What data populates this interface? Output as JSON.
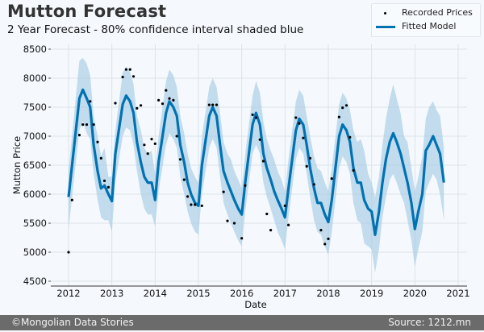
{
  "header": {
    "title": "Mutton Forecast",
    "subtitle": "2 Year Forecast - 80% confidence interval shaded blue"
  },
  "legend": {
    "items": [
      {
        "label": "Recorded Prices",
        "marker": "dot"
      },
      {
        "label": "Fitted Model",
        "marker": "line"
      }
    ]
  },
  "footer": {
    "left": "©Mongolian Data Stories",
    "right": "Source: 1212.mn"
  },
  "colors": {
    "model_line": "#0072b2",
    "interval": "#a6cce6",
    "points": "#000000",
    "grid": "#dde3e8",
    "footer_bg": "#6b6b6b"
  },
  "chart_data": {
    "type": "line",
    "title": "Mutton Forecast",
    "subtitle": "2 Year Forecast - 80% confidence interval shaded blue",
    "xlabel": "Date",
    "ylabel": "Mutton Price",
    "xlim": [
      2011.6,
      2021.1
    ],
    "ylim": [
      4450,
      8560
    ],
    "xticks": [
      2012,
      2013,
      2014,
      2015,
      2016,
      2017,
      2018,
      2019,
      2020,
      2021
    ],
    "yticks": [
      4500,
      5000,
      5500,
      6000,
      6500,
      7000,
      7500,
      8000,
      8500
    ],
    "grid": true,
    "legend_position": "top-right",
    "series": [
      {
        "name": "Fitted Model",
        "x": [
          2012.0,
          2012.25,
          2012.33,
          2012.42,
          2012.5,
          2012.58,
          2012.67,
          2012.75,
          2012.83,
          2012.92,
          2013.0,
          2013.08,
          2013.25,
          2013.33,
          2013.42,
          2013.5,
          2013.58,
          2013.67,
          2013.75,
          2013.83,
          2013.92,
          2014.0,
          2014.08,
          2014.25,
          2014.33,
          2014.42,
          2014.5,
          2014.58,
          2014.67,
          2014.75,
          2014.83,
          2014.92,
          2015.0,
          2015.08,
          2015.25,
          2015.33,
          2015.42,
          2015.5,
          2015.58,
          2015.67,
          2015.75,
          2015.83,
          2015.92,
          2016.0,
          2016.08,
          2016.25,
          2016.33,
          2016.42,
          2016.5,
          2016.58,
          2016.67,
          2016.75,
          2016.83,
          2016.92,
          2017.0,
          2017.08,
          2017.25,
          2017.33,
          2017.42,
          2017.5,
          2017.58,
          2017.67,
          2017.75,
          2017.83,
          2017.92,
          2018.0,
          2018.08,
          2018.25,
          2018.33,
          2018.42,
          2018.5,
          2018.58,
          2018.67,
          2018.75,
          2018.83,
          2018.92,
          2019.0,
          2019.08,
          2019.17,
          2019.25,
          2019.33,
          2019.42,
          2019.5,
          2019.58,
          2019.67,
          2019.75,
          2019.83,
          2019.92,
          2020.0,
          2020.08,
          2020.17,
          2020.25,
          2020.33,
          2020.42,
          2020.5,
          2020.58,
          2020.67
        ],
        "values": [
          5950,
          7650,
          7800,
          7650,
          7500,
          6850,
          6400,
          6100,
          6150,
          6000,
          5880,
          6700,
          7550,
          7700,
          7600,
          7400,
          6900,
          6550,
          6300,
          6200,
          6200,
          5900,
          6550,
          7400,
          7600,
          7500,
          7350,
          6850,
          6550,
          6200,
          6000,
          5850,
          5800,
          6500,
          7350,
          7500,
          7350,
          6850,
          6400,
          6200,
          6050,
          5900,
          5750,
          5650,
          6200,
          7200,
          7400,
          7200,
          6700,
          6450,
          6250,
          6050,
          5900,
          5750,
          5600,
          6100,
          7100,
          7300,
          7200,
          6850,
          6450,
          6100,
          5850,
          5850,
          5650,
          5520,
          5900,
          7000,
          7200,
          7100,
          6900,
          6450,
          6200,
          6200,
          5900,
          5750,
          5700,
          5300,
          5700,
          6200,
          6600,
          6900,
          7050,
          6900,
          6700,
          6450,
          6200,
          5850,
          5400,
          5700,
          6000,
          6750,
          6850,
          7000,
          6850,
          6700,
          6200
        ]
      },
      {
        "name": "80% Interval Upper",
        "x": [
          2012.0,
          2012.25,
          2012.33,
          2012.42,
          2012.5,
          2012.58,
          2012.67,
          2012.75,
          2012.83,
          2012.92,
          2013.0,
          2013.08,
          2013.25,
          2013.33,
          2013.42,
          2013.5,
          2013.58,
          2013.67,
          2013.75,
          2013.83,
          2013.92,
          2014.0,
          2014.08,
          2014.25,
          2014.33,
          2014.42,
          2014.5,
          2014.58,
          2014.67,
          2014.75,
          2014.83,
          2014.92,
          2015.0,
          2015.08,
          2015.25,
          2015.33,
          2015.42,
          2015.5,
          2015.58,
          2015.67,
          2015.75,
          2015.83,
          2015.92,
          2016.0,
          2016.08,
          2016.25,
          2016.33,
          2016.42,
          2016.5,
          2016.58,
          2016.67,
          2016.75,
          2016.83,
          2016.92,
          2017.0,
          2017.08,
          2017.25,
          2017.33,
          2017.42,
          2017.5,
          2017.58,
          2017.67,
          2017.75,
          2017.83,
          2017.92,
          2018.0,
          2018.08,
          2018.25,
          2018.33,
          2018.42,
          2018.5,
          2018.58,
          2018.67,
          2018.75,
          2018.83,
          2018.92,
          2019.0,
          2019.08,
          2019.17,
          2019.25,
          2019.33,
          2019.42,
          2019.5,
          2019.58,
          2019.67,
          2019.75,
          2019.83,
          2019.92,
          2020.0,
          2020.08,
          2020.17,
          2020.25,
          2020.33,
          2020.42,
          2020.5,
          2020.58,
          2020.67
        ],
        "values": [
          6400,
          8300,
          8350,
          8250,
          8050,
          7350,
          7000,
          6650,
          6800,
          6300,
          6300,
          7100,
          8100,
          8200,
          8100,
          7900,
          7350,
          7100,
          6800,
          6700,
          6750,
          6350,
          7000,
          7950,
          8150,
          8050,
          7850,
          7350,
          7050,
          6700,
          6450,
          6300,
          6200,
          7000,
          7850,
          8000,
          7850,
          7400,
          6900,
          6700,
          6600,
          6400,
          6250,
          6100,
          6700,
          7700,
          7950,
          7750,
          7250,
          6950,
          6750,
          6600,
          6400,
          6250,
          6050,
          6600,
          7600,
          7800,
          7700,
          7350,
          7000,
          6650,
          6450,
          6400,
          6200,
          6050,
          6450,
          7550,
          7750,
          7650,
          7450,
          7100,
          6900,
          6950,
          6750,
          6350,
          6200,
          5950,
          6300,
          6850,
          7300,
          7650,
          7900,
          7650,
          7400,
          7000,
          6900,
          6450,
          6050,
          6300,
          6650,
          7300,
          7500,
          7600,
          7450,
          7350,
          6800
        ]
      },
      {
        "name": "80% Interval Lower",
        "x": [
          2012.0,
          2012.25,
          2012.33,
          2012.42,
          2012.5,
          2012.58,
          2012.67,
          2012.75,
          2012.83,
          2012.92,
          2013.0,
          2013.08,
          2013.25,
          2013.33,
          2013.42,
          2013.5,
          2013.58,
          2013.67,
          2013.75,
          2013.83,
          2013.92,
          2014.0,
          2014.08,
          2014.25,
          2014.33,
          2014.42,
          2014.5,
          2014.58,
          2014.67,
          2014.75,
          2014.83,
          2014.92,
          2015.0,
          2015.08,
          2015.25,
          2015.33,
          2015.42,
          2015.5,
          2015.58,
          2015.67,
          2015.75,
          2015.83,
          2015.92,
          2016.0,
          2016.08,
          2016.25,
          2016.33,
          2016.42,
          2016.5,
          2016.58,
          2016.67,
          2016.75,
          2016.83,
          2016.92,
          2017.0,
          2017.08,
          2017.25,
          2017.33,
          2017.42,
          2017.5,
          2017.58,
          2017.67,
          2017.75,
          2017.83,
          2017.92,
          2018.0,
          2018.08,
          2018.25,
          2018.33,
          2018.42,
          2018.5,
          2018.58,
          2018.67,
          2018.75,
          2018.83,
          2018.92,
          2019.0,
          2019.08,
          2019.17,
          2019.25,
          2019.33,
          2019.42,
          2019.5,
          2019.58,
          2019.67,
          2019.75,
          2019.83,
          2019.92,
          2020.0,
          2020.08,
          2020.17,
          2020.25,
          2020.33,
          2020.42,
          2020.5,
          2020.58,
          2020.67
        ],
        "values": [
          5400,
          7100,
          7250,
          7050,
          6950,
          6350,
          5900,
          5600,
          5550,
          5550,
          5350,
          6200,
          7000,
          7150,
          7100,
          6850,
          6400,
          6000,
          5750,
          5650,
          5650,
          5450,
          6050,
          6850,
          7050,
          6950,
          6800,
          6300,
          6000,
          5700,
          5500,
          5350,
          5300,
          6000,
          6800,
          6950,
          6800,
          6300,
          5850,
          5650,
          5500,
          5350,
          5200,
          5100,
          5700,
          6700,
          6850,
          6700,
          6200,
          5950,
          5750,
          5550,
          5350,
          5200,
          5050,
          5600,
          6600,
          6800,
          6700,
          6350,
          5950,
          5550,
          5350,
          5300,
          5100,
          4950,
          5350,
          6450,
          6650,
          6550,
          6350,
          5850,
          5550,
          5500,
          5150,
          5100,
          5050,
          4650,
          5050,
          5600,
          5950,
          6250,
          6350,
          6200,
          6000,
          5850,
          5550,
          5200,
          4750,
          5050,
          5350,
          6050,
          6200,
          6350,
          6250,
          6000,
          5550
        ]
      },
      {
        "name": "Recorded Prices",
        "type": "scatter",
        "x": [
          2012.0,
          2012.08,
          2012.25,
          2012.33,
          2012.42,
          2012.5,
          2012.58,
          2012.67,
          2012.75,
          2012.83,
          2012.92,
          2013.08,
          2013.25,
          2013.33,
          2013.42,
          2013.5,
          2013.58,
          2013.67,
          2013.75,
          2013.83,
          2013.92,
          2014.0,
          2014.08,
          2014.17,
          2014.25,
          2014.33,
          2014.42,
          2014.5,
          2014.58,
          2014.67,
          2014.75,
          2014.83,
          2014.92,
          2015.08,
          2015.25,
          2015.33,
          2015.42,
          2015.58,
          2015.67,
          2015.83,
          2016.0,
          2016.08,
          2016.25,
          2016.33,
          2016.42,
          2016.5,
          2016.58,
          2016.67,
          2017.0,
          2017.08,
          2017.25,
          2017.33,
          2017.42,
          2017.5,
          2017.58,
          2017.67,
          2017.83,
          2017.92,
          2018.0,
          2018.08,
          2018.25,
          2018.33,
          2018.42,
          2018.5,
          2018.58
        ],
        "values": [
          5000,
          5900,
          7020,
          7200,
          7200,
          7600,
          7200,
          6900,
          6620,
          6230,
          6120,
          7570,
          8020,
          8150,
          8150,
          8030,
          7480,
          7530,
          6850,
          6700,
          6950,
          6870,
          7620,
          7560,
          7790,
          7650,
          7620,
          7000,
          6600,
          6250,
          5960,
          5820,
          5820,
          5800,
          7540,
          7540,
          7540,
          6040,
          5540,
          5500,
          5240,
          6150,
          7370,
          7320,
          6940,
          6570,
          5660,
          5380,
          5800,
          5470,
          7320,
          7220,
          6970,
          6480,
          6620,
          6170,
          5380,
          5140,
          5230,
          6270,
          7330,
          7490,
          7530,
          6980,
          6410
        ]
      }
    ]
  }
}
